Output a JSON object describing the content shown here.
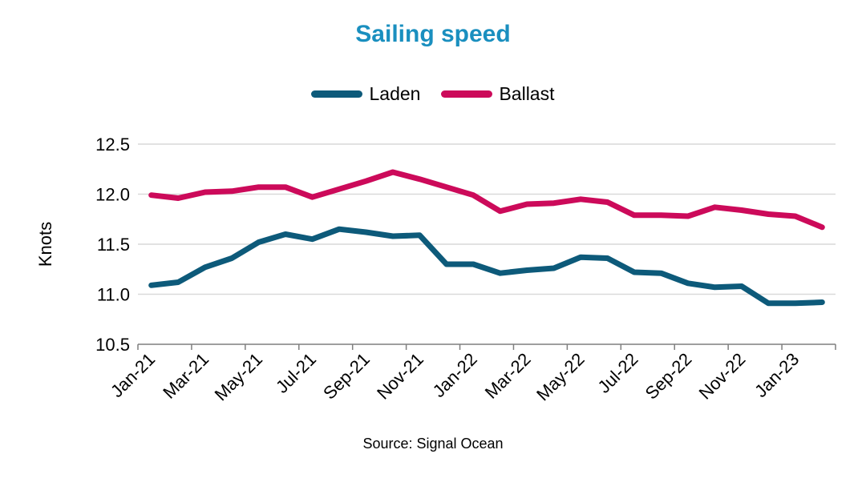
{
  "chart_data": {
    "type": "line",
    "title": "Sailing speed",
    "ylabel": "Knots",
    "xlabel": "",
    "source": "Source: Signal Ocean",
    "ylim": [
      10.5,
      12.5
    ],
    "yticks": [
      "10.5",
      "11.0",
      "11.5",
      "12.0",
      "12.5"
    ],
    "grid": true,
    "legend_position": "top-center",
    "x_tick_labels": [
      "Jan-21",
      "Mar-21",
      "May-21",
      "Jul-21",
      "Sep-21",
      "Nov-21",
      "Jan-22",
      "Mar-22",
      "May-22",
      "Jul-22",
      "Sep-22",
      "Nov-22",
      "Jan-23"
    ],
    "categories": [
      "Jan-21",
      "Feb-21",
      "Mar-21",
      "Apr-21",
      "May-21",
      "Jun-21",
      "Jul-21",
      "Aug-21",
      "Sep-21",
      "Oct-21",
      "Nov-21",
      "Dec-21",
      "Jan-22",
      "Feb-22",
      "Mar-22",
      "Apr-22",
      "May-22",
      "Jun-22",
      "Jul-22",
      "Aug-22",
      "Sep-22",
      "Oct-22",
      "Nov-22",
      "Dec-22",
      "Jan-23",
      "Feb-23"
    ],
    "series": [
      {
        "name": "Laden",
        "color": "#0d5a7a",
        "values": [
          11.09,
          11.12,
          11.27,
          11.36,
          11.52,
          11.6,
          11.55,
          11.65,
          11.62,
          11.58,
          11.59,
          11.3,
          11.3,
          11.21,
          11.24,
          11.26,
          11.37,
          11.36,
          11.22,
          11.21,
          11.11,
          11.07,
          11.08,
          10.91,
          10.91,
          10.92
        ]
      },
      {
        "name": "Ballast",
        "color": "#cc0a5a",
        "values": [
          11.99,
          11.96,
          12.02,
          12.03,
          12.07,
          12.07,
          11.97,
          12.05,
          12.13,
          12.22,
          12.15,
          12.07,
          11.99,
          11.83,
          11.9,
          11.91,
          11.95,
          11.92,
          11.79,
          11.79,
          11.78,
          11.87,
          11.84,
          11.8,
          11.78,
          11.67
        ]
      }
    ]
  },
  "colors": {
    "title": "#1a8fbf",
    "grid": "#d9d9d9",
    "axis": "#7f7f7f"
  }
}
